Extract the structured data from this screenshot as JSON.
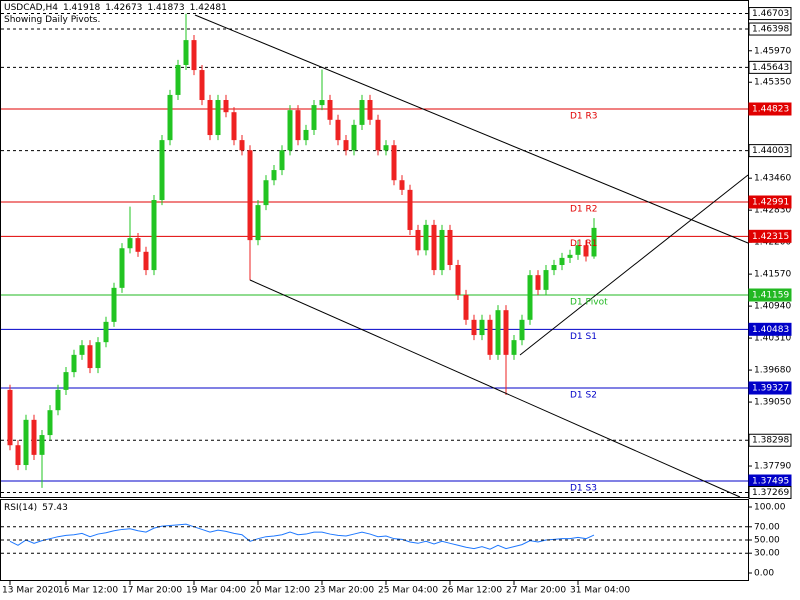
{
  "chart_data": [
    {
      "type": "candlestick",
      "title": "USDCAD,H4",
      "subtitle": "Showing Daily Pivots.",
      "categories": [
        "13 Mar 2020",
        null,
        null,
        null,
        null,
        null,
        null,
        "16 Mar 12:00",
        null,
        null,
        null,
        null,
        null,
        null,
        null,
        "17 Mar 20:00",
        null,
        null,
        null,
        null,
        null,
        null,
        null,
        "19 Mar 04:00",
        null,
        null,
        null,
        null,
        null,
        null,
        null,
        "20 Mar 12:00",
        null,
        null,
        null,
        null,
        null,
        null,
        null,
        "23 Mar 20:00",
        null,
        null,
        null,
        null,
        null,
        null,
        null,
        "25 Mar 04:00",
        null,
        null,
        null,
        null,
        null,
        null,
        null,
        "26 Mar 12:00",
        null,
        null,
        null,
        null,
        null,
        null,
        null,
        "27 Mar 20:00",
        null,
        null,
        null,
        null,
        null,
        null,
        null,
        "31 Mar 04:00",
        null,
        null
      ],
      "open": [
        1.3929,
        1.382,
        1.3781,
        1.387,
        1.3801,
        1.384,
        1.3889,
        1.3929,
        1.3964,
        1.3998,
        1.4017,
        1.3972,
        1.4023,
        1.4063,
        1.413,
        1.4208,
        1.4228,
        1.4201,
        1.4165,
        1.4303,
        1.4421,
        1.451,
        1.4569,
        1.4618,
        1.4559,
        1.45,
        1.4431,
        1.45,
        1.4476,
        1.4421,
        1.4401,
        1.4224,
        1.4293,
        1.4342,
        1.4362,
        1.4401,
        1.448,
        1.4421,
        1.4441,
        1.449,
        1.45,
        1.4461,
        1.4421,
        1.4401,
        1.4451,
        1.45,
        1.4461,
        1.4401,
        1.4411,
        1.4342,
        1.4323,
        1.4244,
        1.4204,
        1.4254,
        1.4165,
        1.4244,
        1.4175,
        1.4116,
        1.4067,
        1.4037,
        1.4067,
        1.3998,
        1.4086,
        1.3998,
        1.4027,
        1.4067,
        1.4155,
        1.4126,
        1.4165,
        1.4175,
        1.4189,
        1.4195,
        1.4214,
        1.41918
      ],
      "high": [
        1.3939,
        1.383,
        1.388,
        1.388,
        1.385,
        1.3899,
        1.3939,
        1.3974,
        1.4008,
        1.4027,
        1.4027,
        1.4033,
        1.4073,
        1.414,
        1.4218,
        1.429,
        1.4238,
        1.4211,
        1.4313,
        1.4431,
        1.452,
        1.4579,
        1.467,
        1.4628,
        1.4569,
        1.451,
        1.451,
        1.451,
        1.4486,
        1.4431,
        1.4411,
        1.4303,
        1.4352,
        1.4372,
        1.4411,
        1.449,
        1.449,
        1.4451,
        1.45,
        1.456,
        1.451,
        1.4471,
        1.4431,
        1.4461,
        1.451,
        1.451,
        1.4471,
        1.4421,
        1.4421,
        1.4352,
        1.4333,
        1.4254,
        1.4264,
        1.4264,
        1.4254,
        1.4254,
        1.4185,
        1.4126,
        1.4077,
        1.4077,
        1.4077,
        1.4096,
        1.4096,
        1.4037,
        1.4077,
        1.4165,
        1.4165,
        1.4175,
        1.4185,
        1.4199,
        1.4205,
        1.4224,
        1.4224,
        1.42673
      ],
      "low": [
        1.381,
        1.3771,
        1.3771,
        1.3791,
        1.3736,
        1.383,
        1.3879,
        1.3919,
        1.3954,
        1.3988,
        1.3962,
        1.3962,
        1.4013,
        1.4053,
        1.412,
        1.4198,
        1.4191,
        1.4155,
        1.4155,
        1.4293,
        1.4411,
        1.45,
        1.4559,
        1.4549,
        1.449,
        1.4421,
        1.4421,
        1.4466,
        1.4411,
        1.4391,
        1.4145,
        1.4214,
        1.4283,
        1.4332,
        1.4352,
        1.4391,
        1.4411,
        1.4411,
        1.4431,
        1.448,
        1.4451,
        1.4411,
        1.4391,
        1.4391,
        1.4441,
        1.4451,
        1.4391,
        1.4391,
        1.4332,
        1.4313,
        1.4234,
        1.4194,
        1.4194,
        1.4155,
        1.4155,
        1.4165,
        1.4106,
        1.4057,
        1.4027,
        1.4027,
        1.3988,
        1.3988,
        1.3919,
        1.3988,
        1.4017,
        1.4057,
        1.4116,
        1.4116,
        1.4155,
        1.4165,
        1.4179,
        1.4185,
        1.4182,
        1.41873
      ],
      "close": [
        1.382,
        1.3781,
        1.387,
        1.3801,
        1.384,
        1.3889,
        1.3929,
        1.3964,
        1.3998,
        1.4017,
        1.3972,
        1.4023,
        1.4063,
        1.413,
        1.4208,
        1.4228,
        1.4201,
        1.4165,
        1.4303,
        1.4421,
        1.451,
        1.4569,
        1.4618,
        1.4559,
        1.45,
        1.4431,
        1.45,
        1.4476,
        1.4421,
        1.4401,
        1.4224,
        1.4293,
        1.4342,
        1.4362,
        1.4401,
        1.448,
        1.4421,
        1.4441,
        1.449,
        1.45,
        1.4461,
        1.4421,
        1.4401,
        1.4451,
        1.45,
        1.4461,
        1.4401,
        1.4411,
        1.4342,
        1.4323,
        1.4244,
        1.4204,
        1.4254,
        1.4165,
        1.4244,
        1.4175,
        1.4116,
        1.4067,
        1.4037,
        1.4067,
        1.3998,
        1.4086,
        1.3998,
        1.4027,
        1.4067,
        1.4155,
        1.4126,
        1.4165,
        1.4175,
        1.4189,
        1.4195,
        1.4214,
        1.41918,
        1.42481
      ],
      "up_color": "#22c422",
      "down_color": "#ee2222",
      "ylim": [
        1.3718,
        1.4697
      ],
      "yticks": [
        {
          "value": 1.4597,
          "label": "1.45970"
        },
        {
          "value": 1.4535,
          "label": "1.45350"
        },
        {
          "value": 1.4346,
          "label": "1.43460"
        },
        {
          "value": 1.4283,
          "label": "1.42830"
        },
        {
          "value": 1.422,
          "label": "1.42200"
        },
        {
          "value": 1.4157,
          "label": "1.41570"
        },
        {
          "value": 1.4094,
          "label": "1.40940"
        },
        {
          "value": 1.4031,
          "label": "1.40310"
        },
        {
          "value": 1.3968,
          "label": "1.39680"
        },
        {
          "value": 1.3905,
          "label": "1.39050"
        },
        {
          "value": 1.3779,
          "label": "1.37790"
        }
      ],
      "levels": [
        {
          "value": 1.46703,
          "color": "#000000",
          "style": "dashed"
        },
        {
          "value": 1.46398,
          "color": "#000000",
          "style": "dashed"
        },
        {
          "value": 1.45643,
          "color": "#000000",
          "style": "dashed"
        },
        {
          "value": 1.44823,
          "color": "#e00000",
          "style": "solid",
          "name": "D1 R3"
        },
        {
          "value": 1.44003,
          "color": "#000000",
          "style": "dashed"
        },
        {
          "value": 1.42991,
          "color": "#e00000",
          "style": "solid",
          "name": "D1 R2"
        },
        {
          "value": 1.42315,
          "color": "#e00000",
          "style": "solid",
          "name": "D1 R1"
        },
        {
          "value": 1.41159,
          "color": "#22b822",
          "style": "solid",
          "name": "D1 Pivot"
        },
        {
          "value": 1.40483,
          "color": "#0000c8",
          "style": "solid",
          "name": "D1 S1"
        },
        {
          "value": 1.39327,
          "color": "#0000c8",
          "style": "solid",
          "name": "D1 S2"
        },
        {
          "value": 1.38298,
          "color": "#000000",
          "style": "dashed"
        },
        {
          "value": 1.37495,
          "color": "#0000c8",
          "style": "solid",
          "name": "D1 S3"
        },
        {
          "value": 1.37269,
          "color": "#000000",
          "style": "dashed"
        }
      ]
    },
    {
      "type": "line",
      "title": "RSI(14)",
      "color": "#1e78ff",
      "values": [
        48,
        42,
        50,
        45,
        49,
        52,
        55,
        57,
        58,
        60,
        55,
        59,
        61,
        64,
        66,
        67,
        64,
        62,
        68,
        71,
        72,
        73,
        74,
        70,
        66,
        62,
        65,
        63,
        60,
        58,
        48,
        52,
        55,
        56,
        58,
        62,
        58,
        59,
        62,
        62,
        59,
        57,
        56,
        59,
        62,
        59,
        55,
        56,
        52,
        51,
        47,
        45,
        48,
        44,
        48,
        45,
        42,
        39,
        37,
        40,
        36,
        42,
        37,
        40,
        43,
        49,
        47,
        50,
        51,
        52,
        52,
        54,
        52,
        57.43
      ],
      "ylim": [
        0,
        100
      ],
      "yticks": [
        {
          "value": 100,
          "label": "100.00"
        },
        {
          "value": 70,
          "label": "70.00"
        },
        {
          "value": 50,
          "label": "50.00"
        },
        {
          "value": 30,
          "label": "30.00"
        },
        {
          "value": 0,
          "label": "0.00"
        }
      ]
    }
  ]
}
